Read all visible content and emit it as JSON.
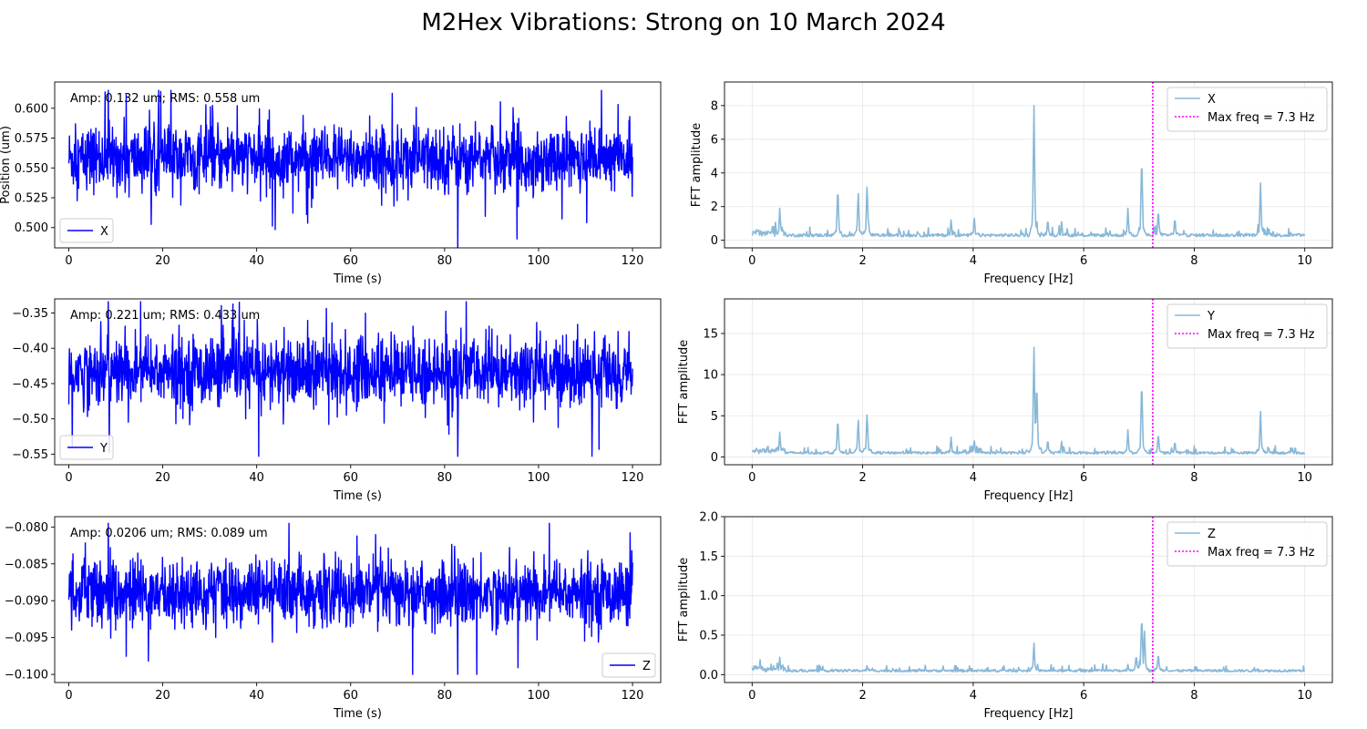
{
  "figure": {
    "title": "M2Hex Vibrations: Strong on 10 March 2024"
  },
  "chart_data": [
    {
      "type": "line",
      "panel": "time-x",
      "xlabel": "Time (s)",
      "ylabel": "Position (um)",
      "xlim": [
        -3,
        126
      ],
      "ylim": [
        0.483,
        0.622
      ],
      "xticks": [
        0,
        20,
        40,
        60,
        80,
        100,
        120
      ],
      "xtick_labels": [
        "0",
        "20",
        "40",
        "60",
        "80",
        "100",
        "120"
      ],
      "yticks": [
        0.5,
        0.525,
        0.55,
        0.575,
        0.6
      ],
      "ytick_labels": [
        "0.500",
        "0.525",
        "0.550",
        "0.575",
        "0.600"
      ],
      "annotation": "Amp: 0.132 um; RMS: 0.558 um",
      "legend": {
        "placement": "lower-left",
        "entries": [
          "X"
        ]
      },
      "series": [
        {
          "name": "X",
          "color": "#0000ff",
          "signal": {
            "mean": 0.558,
            "spread": 0.0135,
            "min": 0.483,
            "max": 0.615
          }
        }
      ],
      "grid": false
    },
    {
      "type": "line",
      "panel": "fft-x",
      "xlabel": "Frequency [Hz]",
      "ylabel": "FFT amplitude",
      "xlim": [
        -0.5,
        10.5
      ],
      "ylim": [
        -0.45,
        9.4
      ],
      "xticks": [
        0,
        2,
        4,
        6,
        8,
        10
      ],
      "xtick_labels": [
        "0",
        "2",
        "4",
        "6",
        "8",
        "10"
      ],
      "yticks": [
        0,
        2,
        4,
        6,
        8
      ],
      "ytick_labels": [
        "0",
        "2",
        "4",
        "6",
        "8"
      ],
      "legend": {
        "placement": "top-right",
        "entries": [
          "X",
          "Max freq = 7.3 Hz"
        ]
      },
      "series": [
        {
          "name": "X",
          "color": "#89b8d8",
          "baseline": 0.3,
          "peaks": [
            [
              0.5,
              1.9
            ],
            [
              1.55,
              3.3
            ],
            [
              1.92,
              3.0
            ],
            [
              2.08,
              3.4
            ],
            [
              3.6,
              1.2
            ],
            [
              4.02,
              1.4
            ],
            [
              5.1,
              8.0
            ],
            [
              5.35,
              1.3
            ],
            [
              5.6,
              1.1
            ],
            [
              6.8,
              1.9
            ],
            [
              7.05,
              5.2
            ],
            [
              7.35,
              1.9
            ],
            [
              7.65,
              1.4
            ],
            [
              9.2,
              3.4
            ],
            [
              9.35,
              0.8
            ]
          ]
        }
      ],
      "vline": {
        "x": 7.25,
        "label": "Max freq = 7.3 Hz",
        "color": "#ff00ff",
        "style": "dotted"
      },
      "grid": true
    },
    {
      "type": "line",
      "panel": "time-y",
      "xlabel": "Time (s)",
      "ylabel": "",
      "xlim": [
        -3,
        126
      ],
      "ylim": [
        -0.565,
        -0.33
      ],
      "xticks": [
        0,
        20,
        40,
        60,
        80,
        100,
        120
      ],
      "xtick_labels": [
        "0",
        "20",
        "40",
        "60",
        "80",
        "100",
        "120"
      ],
      "yticks": [
        -0.55,
        -0.5,
        -0.45,
        -0.4,
        -0.35
      ],
      "ytick_labels": [
        "−0.55",
        "−0.50",
        "−0.45",
        "−0.40",
        "−0.35"
      ],
      "annotation": "Amp: 0.221 um; RMS: 0.433 um",
      "legend": {
        "placement": "lower-left",
        "entries": [
          "Y"
        ]
      },
      "series": [
        {
          "name": "Y",
          "color": "#0000ff",
          "signal": {
            "mean": -0.433,
            "spread": 0.025,
            "min": -0.553,
            "max": -0.334
          }
        }
      ],
      "grid": false
    },
    {
      "type": "line",
      "panel": "fft-y",
      "xlabel": "Frequency [Hz]",
      "ylabel": "FFT amplitude",
      "xlim": [
        -0.5,
        10.5
      ],
      "ylim": [
        -0.95,
        19.2
      ],
      "xticks": [
        0,
        2,
        4,
        6,
        8,
        10
      ],
      "xtick_labels": [
        "0",
        "2",
        "4",
        "6",
        "8",
        "10"
      ],
      "yticks": [
        0,
        5,
        10,
        15
      ],
      "ytick_labels": [
        "0",
        "5",
        "10",
        "15"
      ],
      "legend": {
        "placement": "top-right",
        "entries": [
          "Y",
          "Max freq = 7.3 Hz"
        ]
      },
      "series": [
        {
          "name": "Y",
          "color": "#89b8d8",
          "baseline": 0.5,
          "peaks": [
            [
              0.5,
              3.0
            ],
            [
              1.55,
              4.9
            ],
            [
              1.92,
              4.8
            ],
            [
              2.08,
              5.5
            ],
            [
              3.6,
              2.4
            ],
            [
              4.02,
              2.1
            ],
            [
              5.1,
              12.8
            ],
            [
              5.15,
              9.5
            ],
            [
              5.35,
              2.2
            ],
            [
              5.6,
              1.9
            ],
            [
              6.8,
              3.3
            ],
            [
              7.05,
              9.7
            ],
            [
              7.35,
              3.0
            ],
            [
              7.65,
              2.0
            ],
            [
              9.2,
              5.5
            ],
            [
              9.35,
              1.2
            ]
          ]
        }
      ],
      "vline": {
        "x": 7.25,
        "label": "Max freq = 7.3 Hz",
        "color": "#ff00ff",
        "style": "dotted"
      },
      "grid": true
    },
    {
      "type": "line",
      "panel": "time-z",
      "xlabel": "Time (s)",
      "ylabel": "",
      "xlim": [
        -3,
        126
      ],
      "ylim": [
        -0.1011,
        -0.0786
      ],
      "xticks": [
        0,
        20,
        40,
        60,
        80,
        100,
        120
      ],
      "xtick_labels": [
        "0",
        "20",
        "40",
        "60",
        "80",
        "100",
        "120"
      ],
      "yticks": [
        -0.1,
        -0.095,
        -0.09,
        -0.085,
        -0.08
      ],
      "ytick_labels": [
        "−0.100",
        "−0.095",
        "−0.090",
        "−0.085",
        "−0.080"
      ],
      "annotation": "Amp: 0.0206 um; RMS: 0.089 um",
      "legend": {
        "placement": "lower-right",
        "entries": [
          "Z"
        ]
      },
      "series": [
        {
          "name": "Z",
          "color": "#0000ff",
          "signal": {
            "mean": -0.089,
            "spread": 0.0022,
            "min": -0.1,
            "max": -0.0795
          }
        }
      ],
      "grid": false
    },
    {
      "type": "line",
      "panel": "fft-z",
      "xlabel": "Frequency [Hz]",
      "ylabel": "FFT amplitude",
      "xlim": [
        -0.5,
        10.5
      ],
      "ylim": [
        -0.1,
        2.0
      ],
      "xticks": [
        0,
        2,
        4,
        6,
        8,
        10
      ],
      "xtick_labels": [
        "0",
        "2",
        "4",
        "6",
        "8",
        "10"
      ],
      "yticks": [
        0,
        0.5,
        1.0,
        1.5,
        2.0
      ],
      "ytick_labels": [
        "0.0",
        "0.5",
        "1.0",
        "1.5",
        "2.0"
      ],
      "legend": {
        "placement": "top-right",
        "entries": [
          "Z",
          "Max freq = 7.3 Hz"
        ]
      },
      "series": [
        {
          "name": "Z",
          "color": "#89b8d8",
          "baseline": 0.05,
          "peaks": [
            [
              0.5,
              0.22
            ],
            [
              2.08,
              0.12
            ],
            [
              5.1,
              0.4
            ],
            [
              6.8,
              0.13
            ],
            [
              6.95,
              0.26
            ],
            [
              7.05,
              0.75
            ],
            [
              7.1,
              0.55
            ],
            [
              7.35,
              0.28
            ],
            [
              7.5,
              0.1
            ]
          ]
        }
      ],
      "vline": {
        "x": 7.25,
        "label": "Max freq = 7.3 Hz",
        "color": "#ff00ff",
        "style": "dotted"
      },
      "grid": true
    }
  ]
}
